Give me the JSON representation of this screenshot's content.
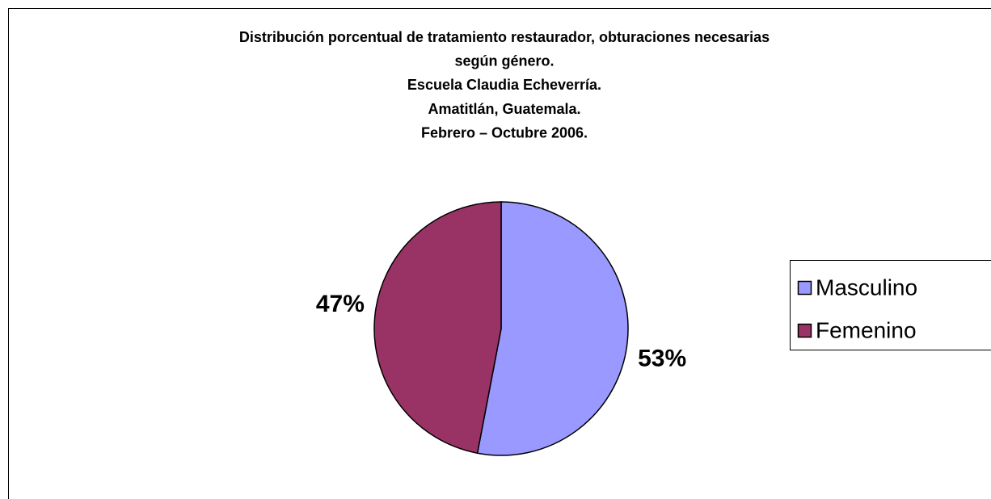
{
  "chart_data": {
    "type": "pie",
    "title": [
      "Distribución porcentual de tratamiento restaurador, obturaciones necesarias",
      "según género.",
      "Escuela Claudia Echeverría.",
      "Amatitlán, Guatemala.",
      "Febrero – Octubre 2006."
    ],
    "categories": [
      "Masculino",
      "Femenino"
    ],
    "values": [
      53,
      47
    ],
    "value_labels": [
      "53%",
      "47%"
    ],
    "colors": [
      "#9999ff",
      "#993366"
    ],
    "legend": "right"
  }
}
